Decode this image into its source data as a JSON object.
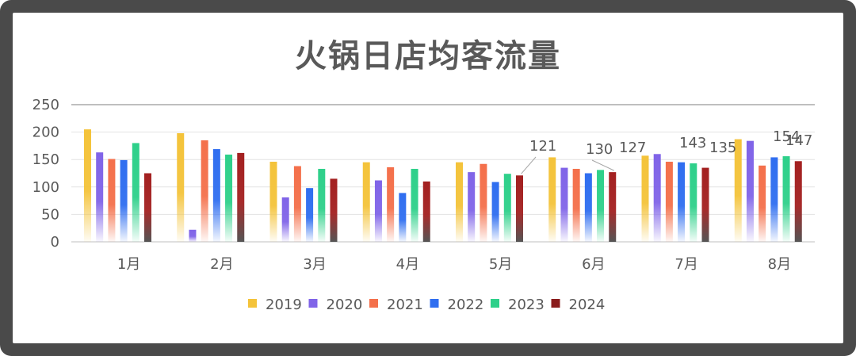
{
  "chart_data": {
    "type": "bar",
    "title": "火锅日店均客流量",
    "xlabel": "",
    "ylabel": "",
    "ylim": [
      0,
      250
    ],
    "yticks": [
      "0",
      "50",
      "100",
      "150",
      "200",
      "250"
    ],
    "categories": [
      "1月",
      "2月",
      "3月",
      "4月",
      "5月",
      "6月",
      "7月",
      "8月"
    ],
    "series": [
      {
        "name": "2019",
        "color": "#f4c33a",
        "values": [
          205,
          198,
          146,
          145,
          145,
          154,
          157,
          187
        ]
      },
      {
        "name": "2020",
        "color": "#8064e8",
        "values": [
          163,
          22,
          81,
          112,
          127,
          135,
          160,
          184
        ]
      },
      {
        "name": "2021",
        "color": "#f4704b",
        "values": [
          151,
          185,
          138,
          136,
          142,
          133,
          146,
          139
        ]
      },
      {
        "name": "2022",
        "color": "#2f6ef0",
        "values": [
          149,
          169,
          98,
          89,
          109,
          125,
          145,
          154
        ]
      },
      {
        "name": "2023",
        "color": "#2ed08a",
        "values": [
          180,
          159,
          133,
          133,
          124,
          131,
          143,
          156
        ]
      },
      {
        "name": "2024",
        "color": "#a32020",
        "values": [
          125,
          162,
          115,
          110,
          121,
          127,
          135,
          147
        ]
      }
    ],
    "annotations": [
      "121",
      "130",
      "127",
      "143",
      "135",
      "154",
      "147"
    ],
    "grid": true,
    "legend": "bottom"
  }
}
